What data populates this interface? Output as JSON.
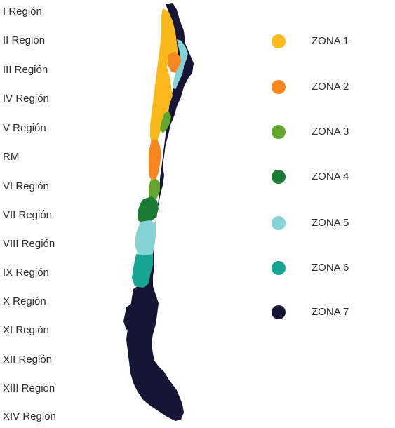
{
  "regions": [
    "I Región",
    "II Región",
    "III Región",
    "IV Región",
    "V Región",
    "RM",
    "VI Región",
    "VII Región",
    "VIII Región",
    "IX Región",
    "X Región",
    "XI Región",
    "XII Región",
    "XIII Región",
    "XIV Región"
  ],
  "legend": [
    {
      "label": "ZONA 1",
      "color": "#fbb81a"
    },
    {
      "label": "ZONA 2",
      "color": "#f7861f"
    },
    {
      "label": "ZONA 3",
      "color": "#64a62c"
    },
    {
      "label": "ZONA 4",
      "color": "#1b7a34"
    },
    {
      "label": "ZONA 5",
      "color": "#86d3d6"
    },
    {
      "label": "ZONA 6",
      "color": "#17a593"
    },
    {
      "label": "ZONA 7",
      "color": "#161535"
    }
  ]
}
